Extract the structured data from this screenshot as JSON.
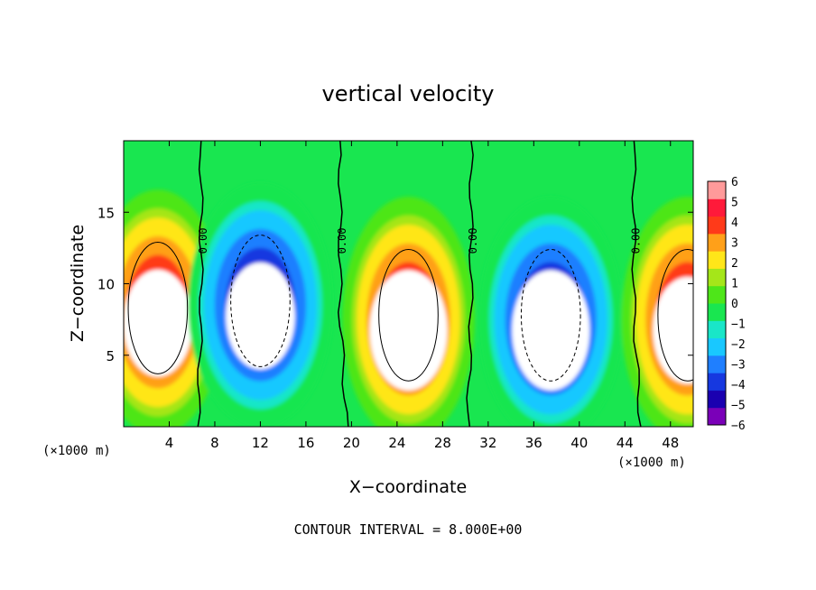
{
  "chart_data": {
    "type": "heatmap",
    "title": "vertical velocity",
    "xlabel": "X−coordinate",
    "ylabel": "Z−coordinate",
    "x_unit_left": "(×1000 m)",
    "x_unit_right": "(×1000 m)",
    "footer": "CONTOUR INTERVAL = 8.000E+00",
    "xlim": [
      0,
      50
    ],
    "ylim": [
      0,
      20
    ],
    "x_ticks": [
      4,
      8,
      12,
      16,
      20,
      24,
      28,
      32,
      36,
      40,
      44,
      48
    ],
    "y_ticks": [
      5,
      10,
      15
    ],
    "colorbar": {
      "min": -6,
      "max": 6,
      "tick_values": [
        6,
        5,
        4,
        3,
        2,
        1,
        0,
        -1,
        -2,
        -3,
        -4,
        -5,
        -6
      ],
      "tick_labels": [
        "6",
        "5",
        "4",
        "3",
        "2",
        "1",
        "0",
        "−1",
        "−2",
        "−3",
        "−4",
        "−5",
        "−6"
      ],
      "colors": [
        "#7a00b8",
        "#1a00b0",
        "#1638e0",
        "#1f7fff",
        "#19c8ff",
        "#19e6c8",
        "#19e650",
        "#4ee619",
        "#a5e619",
        "#ffe619",
        "#ffa019",
        "#ff3a19",
        "#ff1a3a",
        "#ff9a9a"
      ]
    },
    "zero_contour_label": "0.00",
    "cells": [
      {
        "x": 3,
        "z": 8,
        "peak": 8
      },
      {
        "x": 12,
        "z": 8.5,
        "peak": -8
      },
      {
        "x": 25,
        "z": 7.5,
        "peak": 9
      },
      {
        "x": 37.5,
        "z": 7.5,
        "peak": -9
      },
      {
        "x": 49.5,
        "z": 7.5,
        "peak": 8
      }
    ]
  }
}
